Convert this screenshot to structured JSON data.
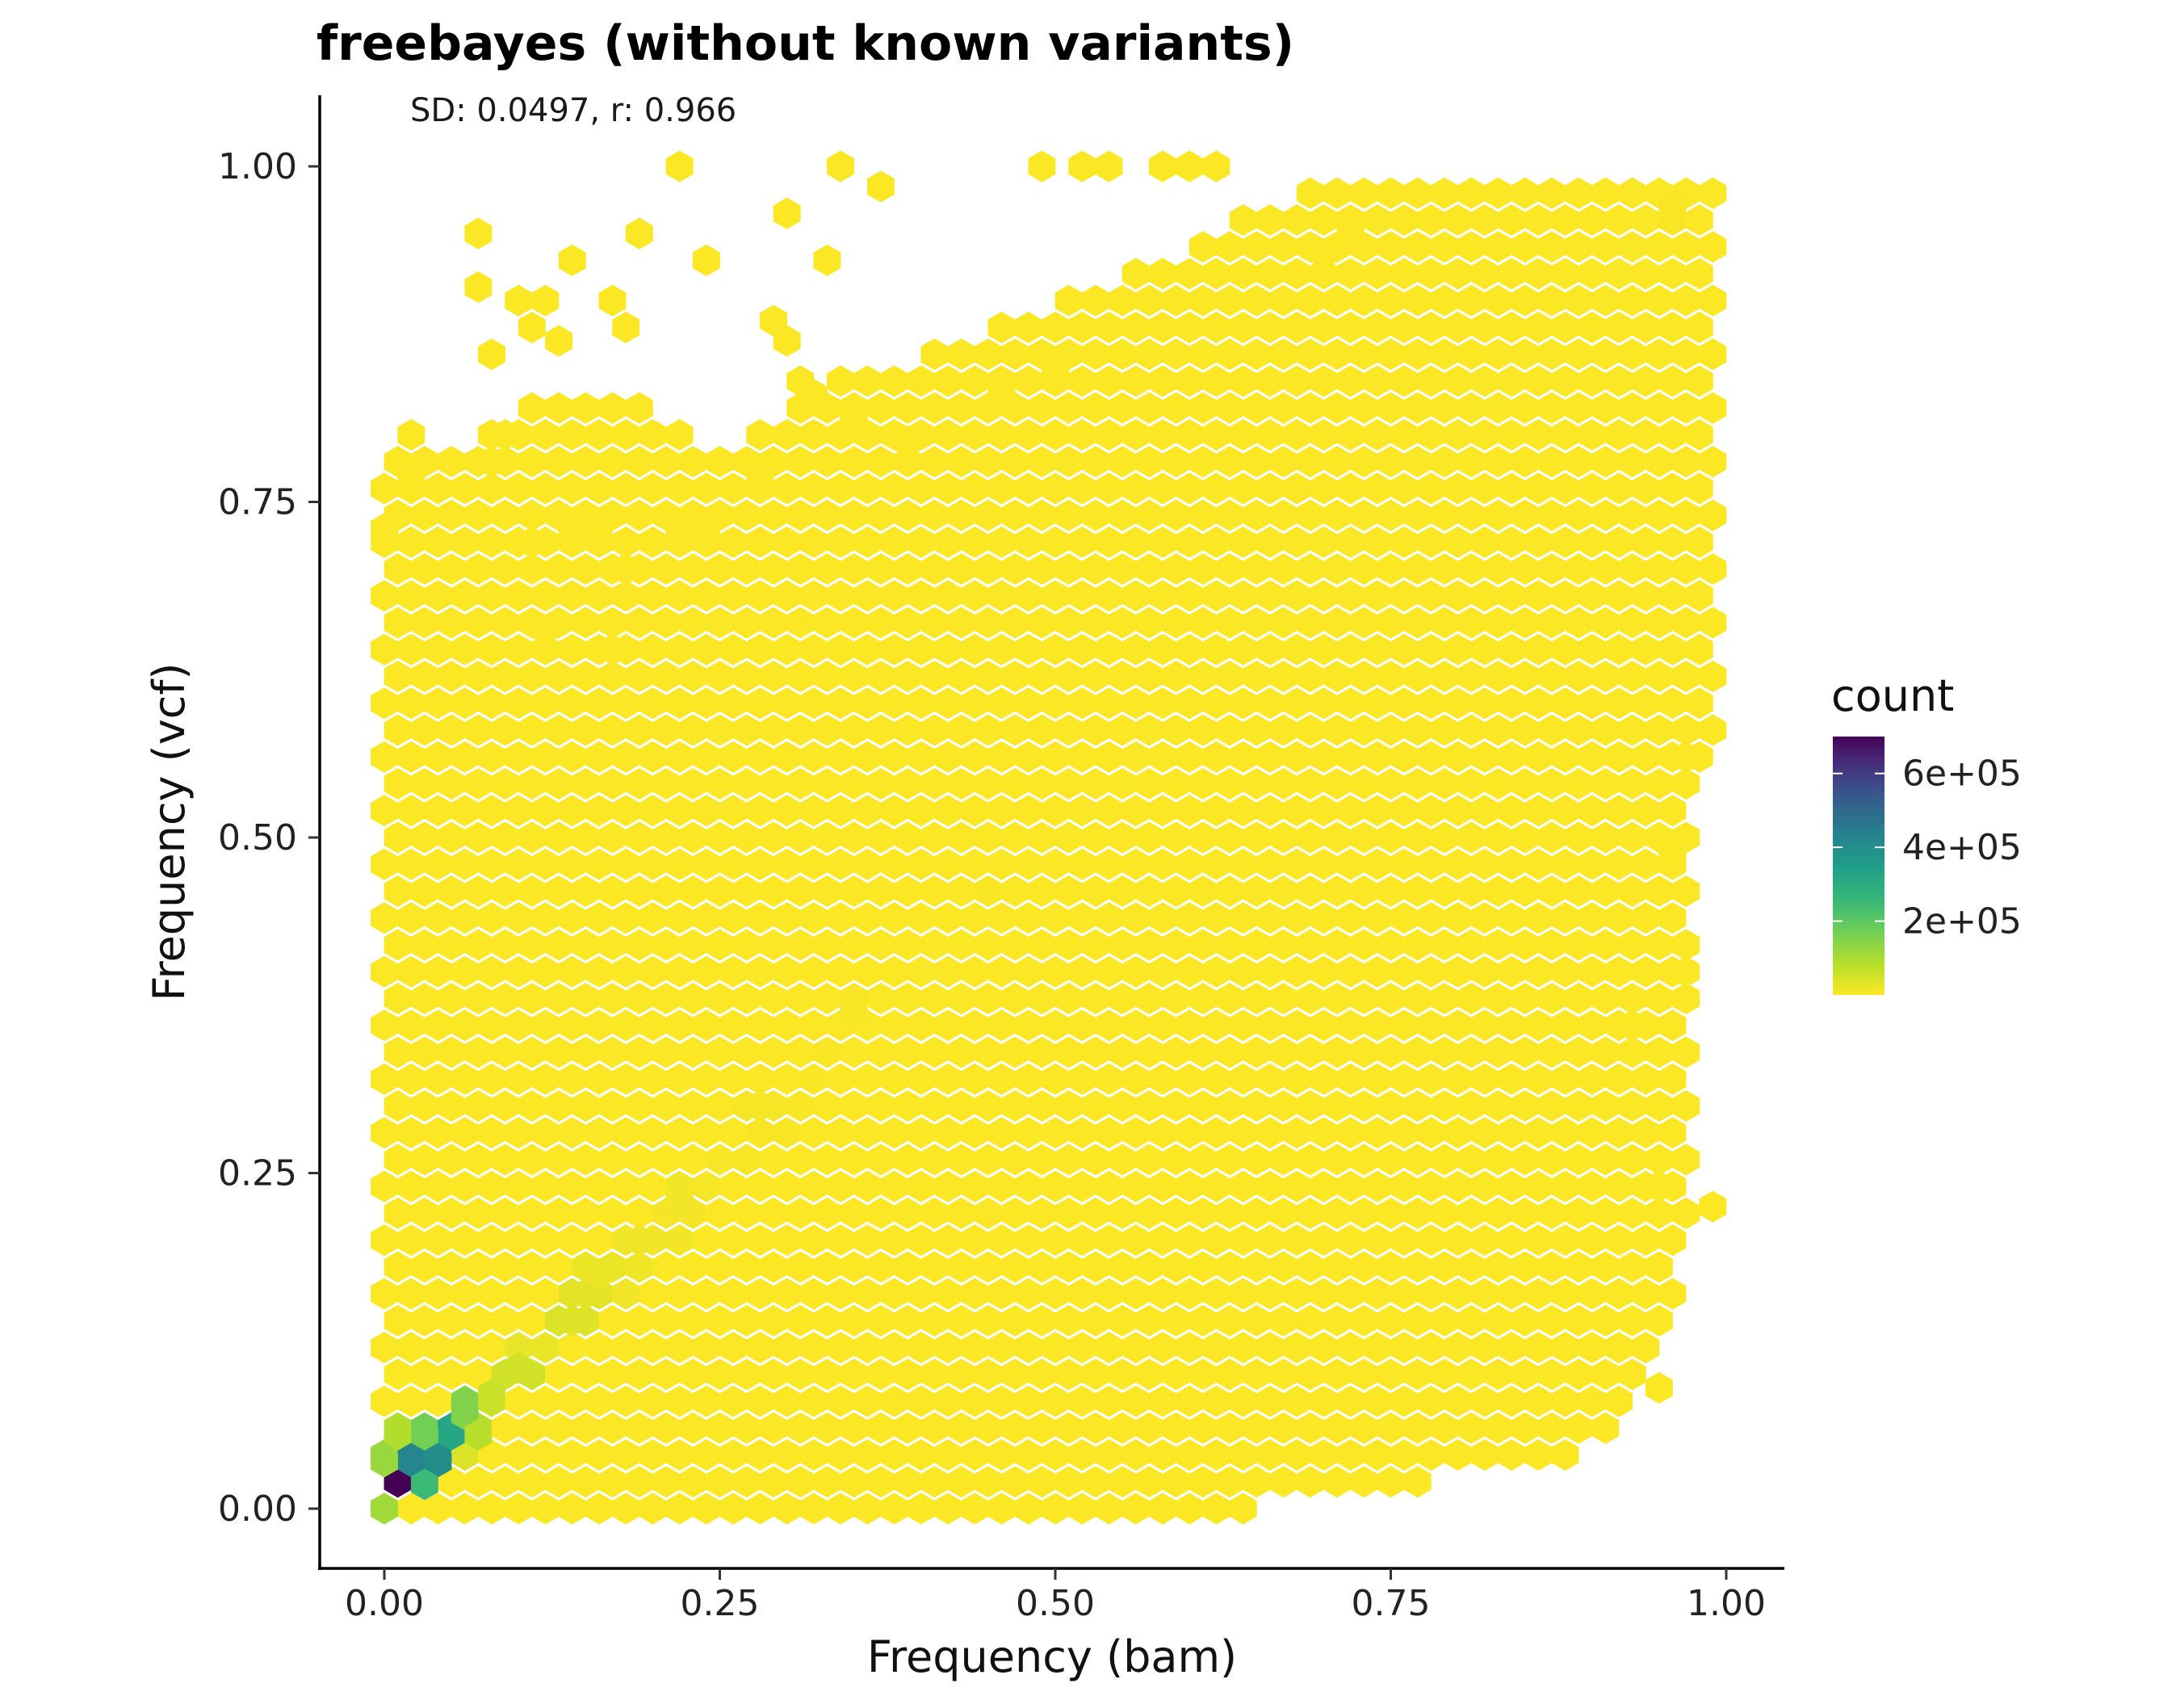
{
  "chart_data": {
    "type": "heatmap",
    "subtype": "hexbin",
    "title": "freebayes (without known variants)",
    "subtitle": "SD: 0.0497, r: 0.966",
    "xlabel": "Frequency (bam)",
    "ylabel": "Frequency (vcf)",
    "xlim": [
      -0.05,
      1.05
    ],
    "ylim": [
      -0.05,
      1.05
    ],
    "xticks": [
      0.0,
      0.25,
      0.5,
      0.75,
      1.0
    ],
    "xtick_labels": [
      "0.00",
      "0.25",
      "0.50",
      "0.75",
      "1.00"
    ],
    "yticks": [
      0.0,
      0.25,
      0.5,
      0.75,
      1.0
    ],
    "ytick_labels": [
      "0.00",
      "0.25",
      "0.50",
      "0.75",
      "1.00"
    ],
    "grid": false,
    "legend": {
      "title": "count",
      "position": "right",
      "breaks": [
        200000,
        400000,
        600000
      ],
      "break_labels": [
        "2e+05",
        "4e+05",
        "6e+05"
      ],
      "range": [
        0,
        700000
      ],
      "colormap": "viridis",
      "colors": [
        "#fde725",
        "#b5de2b",
        "#6ece58",
        "#35b779",
        "#1f9e89",
        "#26828e",
        "#31688e",
        "#3e4989",
        "#482878",
        "#440154"
      ]
    },
    "bins": {
      "x_count": 50,
      "y_count": 50
    },
    "high_density_bins": [
      {
        "x": 0.01,
        "y": 0.02,
        "count": 700000
      },
      {
        "x": 0.02,
        "y": 0.035,
        "count": 420000
      },
      {
        "x": 0.04,
        "y": 0.035,
        "count": 400000
      },
      {
        "x": 0.05,
        "y": 0.055,
        "count": 320000
      },
      {
        "x": 0.03,
        "y": 0.018,
        "count": 250000
      },
      {
        "x": 0.03,
        "y": 0.055,
        "count": 170000
      },
      {
        "x": 0.06,
        "y": 0.07,
        "count": 150000
      },
      {
        "x": 0.0,
        "y": 0.035,
        "count": 120000
      },
      {
        "x": 0.0,
        "y": 0.0,
        "count": 110000
      },
      {
        "x": 0.01,
        "y": 0.055,
        "count": 90000
      },
      {
        "x": 0.07,
        "y": 0.055,
        "count": 80000
      },
      {
        "x": 0.08,
        "y": 0.085,
        "count": 60000
      },
      {
        "x": 0.1,
        "y": 0.105,
        "count": 50000
      },
      {
        "x": 0.13,
        "y": 0.14,
        "count": 40000
      },
      {
        "x": 0.14,
        "y": 0.14,
        "count": 35000
      },
      {
        "x": 0.15,
        "y": 0.16,
        "count": 30000
      },
      {
        "x": 0.16,
        "y": 0.175,
        "count": 20000
      },
      {
        "x": 0.19,
        "y": 0.2,
        "count": 15000
      },
      {
        "x": 0.22,
        "y": 0.23,
        "count": 12000
      },
      {
        "x": 0.28,
        "y": 0.3,
        "count": 9000
      },
      {
        "x": 0.35,
        "y": 0.37,
        "count": 7000
      },
      {
        "x": 0.45,
        "y": 0.46,
        "count": 5000
      },
      {
        "x": 0.96,
        "y": 0.97,
        "count": 6000
      }
    ],
    "lower_boundary": [
      [
        0.55,
        0.0
      ],
      [
        0.61,
        0.0
      ],
      [
        0.64,
        0.0
      ],
      [
        0.78,
        0.02
      ],
      [
        0.87,
        0.03
      ],
      [
        0.92,
        0.05
      ],
      [
        0.93,
        0.08
      ],
      [
        0.94,
        0.1
      ],
      [
        0.96,
        0.15
      ],
      [
        0.97,
        0.22
      ],
      [
        0.97,
        0.38
      ],
      [
        0.97,
        0.55
      ],
      [
        0.99,
        0.55
      ],
      [
        0.99,
        0.99
      ]
    ],
    "upper_boundary": [
      [
        0.0,
        0.77
      ],
      [
        0.02,
        0.8
      ],
      [
        0.04,
        0.79
      ],
      [
        0.07,
        0.8
      ],
      [
        0.1,
        0.82
      ],
      [
        0.13,
        0.84
      ],
      [
        0.17,
        0.83
      ],
      [
        0.2,
        0.82
      ],
      [
        0.25,
        0.79
      ],
      [
        0.3,
        0.82
      ],
      [
        0.35,
        0.85
      ],
      [
        0.4,
        0.86
      ],
      [
        0.45,
        0.88
      ],
      [
        0.5,
        0.9
      ],
      [
        0.55,
        0.92
      ],
      [
        0.6,
        0.94
      ],
      [
        0.66,
        0.97
      ],
      [
        0.72,
        0.99
      ],
      [
        1.0,
        0.99
      ]
    ],
    "outlier_bins": [
      [
        0.22,
        1.0
      ],
      [
        0.34,
        1.0
      ],
      [
        0.37,
        0.985
      ],
      [
        0.3,
        0.965
      ],
      [
        0.07,
        0.95
      ],
      [
        0.19,
        0.95
      ],
      [
        0.14,
        0.93
      ],
      [
        0.07,
        0.91
      ],
      [
        0.24,
        0.93
      ],
      [
        0.33,
        0.93
      ],
      [
        0.49,
        1.0
      ],
      [
        0.52,
        1.0
      ],
      [
        0.54,
        1.0
      ],
      [
        0.58,
        1.0
      ],
      [
        0.6,
        1.0
      ],
      [
        0.62,
        1.0
      ],
      [
        0.1,
        0.9
      ],
      [
        0.12,
        0.9
      ],
      [
        0.17,
        0.9
      ],
      [
        0.18,
        0.88
      ],
      [
        0.11,
        0.88
      ],
      [
        0.13,
        0.87
      ],
      [
        0.08,
        0.86
      ],
      [
        0.29,
        0.885
      ],
      [
        0.3,
        0.87
      ],
      [
        0.31,
        0.84
      ],
      [
        0.39,
        0.795
      ],
      [
        0.6,
        0.88
      ],
      [
        0.5,
        0.845
      ],
      [
        0.46,
        0.83
      ],
      [
        0.32,
        0.83
      ],
      [
        0.35,
        0.815
      ],
      [
        0.09,
        0.8
      ],
      [
        0.08,
        0.78
      ],
      [
        0.02,
        0.77
      ],
      [
        0.0,
        0.73
      ],
      [
        0.11,
        0.72
      ],
      [
        0.14,
        0.725
      ],
      [
        0.16,
        0.725
      ],
      [
        0.18,
        0.7
      ],
      [
        0.22,
        0.725
      ],
      [
        0.24,
        0.725
      ],
      [
        0.12,
        0.655
      ],
      [
        0.17,
        0.64
      ],
      [
        0.02,
        0.64
      ],
      [
        0.7,
        0.935
      ],
      [
        0.72,
        0.955
      ],
      [
        0.97,
        0.56
      ],
      [
        0.96,
        0.49
      ],
      [
        0.97,
        0.4
      ],
      [
        0.93,
        0.36
      ],
      [
        0.95,
        0.24
      ],
      [
        0.99,
        0.225
      ],
      [
        0.95,
        0.09
      ],
      [
        0.28,
        0.765
      ]
    ]
  }
}
